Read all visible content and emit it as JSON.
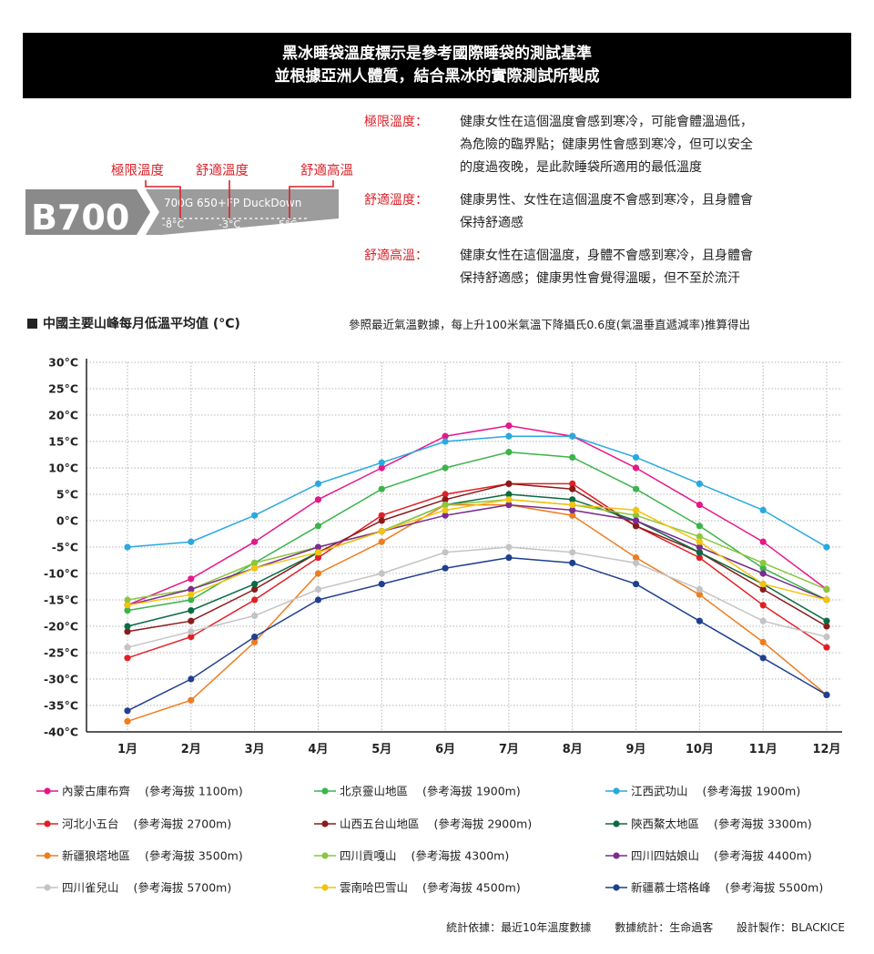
{
  "banner": {
    "line1": "黑冰睡袋溫度標示是參考國際睡袋的測試基準",
    "line2": "並根據亞洲人體質，結合黑冰的實際測試所製成"
  },
  "badge": {
    "model": "B700",
    "spec": "700G 650+FP DuckDown",
    "labels": [
      "極限溫度",
      "舒適溫度",
      "舒適高溫"
    ],
    "temps": [
      "-8°C",
      "-3°C",
      "5°C"
    ]
  },
  "definitions": [
    {
      "term": "極限溫度：",
      "text": "健康女性在這個溫度會感到寒冷，可能會體溫過低，\n為危險的臨界點；健康男性會感到寒冷，但可以安全\n的度過夜晚，是此款睡袋所適用的最低溫度"
    },
    {
      "term": "舒適溫度：",
      "text": "健康男性、女性在這個溫度不會感到寒冷，且身體會\n保持舒適感"
    },
    {
      "term": "舒適高溫：",
      "text": "健康女性在這個溫度，身體不會感到寒冷，且身體會\n保持舒適感；健康男性會覺得溫暖，但不至於流汗"
    }
  ],
  "chart_title": "中國主要山峰每月低溫平均值 (°C)",
  "note": "參照最近氣溫數據，每上升100米氣溫下降攝氏0.6度(氣溫垂直遞減率)推算得出",
  "footer": {
    "basis": "統計依據：最近10年溫度數據",
    "stats": "數據統計：生命過客",
    "design": "設計製作：BLACKICE"
  },
  "chart_data": {
    "type": "line",
    "title": "中國主要山峰每月低溫平均值 (°C)",
    "categories": [
      "1月",
      "2月",
      "3月",
      "4月",
      "5月",
      "6月",
      "7月",
      "8月",
      "9月",
      "10月",
      "11月",
      "12月"
    ],
    "ylim": [
      -40,
      30
    ],
    "yticks": [
      30,
      25,
      20,
      15,
      10,
      5,
      0,
      -5,
      -10,
      -15,
      -20,
      -25,
      -30,
      -35,
      -40
    ],
    "ytick_labels": [
      "30°C",
      "25°C",
      "20°C",
      "15°C",
      "10°C",
      "5°C",
      "0°C",
      "-5°C",
      "-10°C",
      "-15°C",
      "-20°C",
      "-25°C",
      "-30°C",
      "-35°C",
      "-40°C"
    ],
    "grid": true,
    "legend_position": "bottom",
    "series": [
      {
        "name": "內蒙古庫布齊",
        "alt": "(參考海拔 1100m)",
        "color": "#e5178a",
        "values": [
          -16,
          -11,
          -4,
          4,
          10,
          16,
          18,
          16,
          10,
          3,
          -4,
          -13
        ]
      },
      {
        "name": "北京靈山地區",
        "alt": "(參考海拔 1900m)",
        "color": "#3cb44b",
        "values": [
          -17,
          -15,
          -8,
          -1,
          6,
          10,
          13,
          12,
          6,
          -1,
          -9,
          -15
        ]
      },
      {
        "name": "江西武功山",
        "alt": "(參考海拔 1900m)",
        "color": "#29a9e0",
        "values": [
          -5,
          -4,
          1,
          7,
          11,
          15,
          16,
          16,
          12,
          7,
          2,
          -5
        ]
      },
      {
        "name": "河北小五台",
        "alt": "(參考海拔 2700m)",
        "color": "#e02026",
        "values": [
          -26,
          -22,
          -15,
          -7,
          1,
          5,
          7,
          7,
          -1,
          -7,
          -16,
          -24
        ]
      },
      {
        "name": "山西五台山地區",
        "alt": "(參考海拔 2900m)",
        "color": "#8b1a1a",
        "values": [
          -21,
          -19,
          -13,
          -6,
          0,
          4,
          7,
          6,
          -1,
          -6,
          -13,
          -20
        ]
      },
      {
        "name": "陝西鰲太地區",
        "alt": "(參考海拔 3300m)",
        "color": "#0b6b43",
        "values": [
          -20,
          -17,
          -12,
          -6,
          -2,
          3,
          5,
          4,
          0,
          -6,
          -12,
          -19
        ]
      },
      {
        "name": "新疆狼塔地區",
        "alt": "(參考海拔 3500m)",
        "color": "#ee7d1f",
        "values": [
          -38,
          -34,
          -23,
          -10,
          -4,
          3,
          3,
          1,
          -7,
          -14,
          -23,
          -33
        ]
      },
      {
        "name": "四川貢嘎山",
        "alt": "(參考海拔 4300m)",
        "color": "#8cc63f",
        "values": [
          -15,
          -13,
          -8,
          -5,
          -2,
          3,
          4,
          3,
          1,
          -3,
          -8,
          -13
        ]
      },
      {
        "name": "四川四姑娘山",
        "alt": "(參考海拔 4400m)",
        "color": "#7b2d8e",
        "values": [
          -16,
          -13,
          -9,
          -5,
          -2,
          1,
          3,
          2,
          0,
          -5,
          -10,
          -15
        ]
      },
      {
        "name": "四川雀兒山",
        "alt": "(參考海拔 5700m)",
        "color": "#c4c4c4",
        "values": [
          -24,
          -21,
          -18,
          -13,
          -10,
          -6,
          -5,
          -6,
          -8,
          -13,
          -19,
          -22
        ]
      },
      {
        "name": "雲南哈巴雪山",
        "alt": "(參考海拔 4500m)",
        "color": "#f2c40f",
        "values": [
          -16,
          -14,
          -9,
          -6,
          -2,
          2,
          4,
          3,
          2,
          -4,
          -12,
          -15
        ]
      },
      {
        "name": "新疆慕士塔格峰",
        "alt": "(參考海拔 5500m)",
        "color": "#1f3f8f",
        "values": [
          -36,
          -30,
          -22,
          -15,
          -12,
          -9,
          -7,
          -8,
          -12,
          -19,
          -26,
          -33
        ]
      }
    ]
  }
}
